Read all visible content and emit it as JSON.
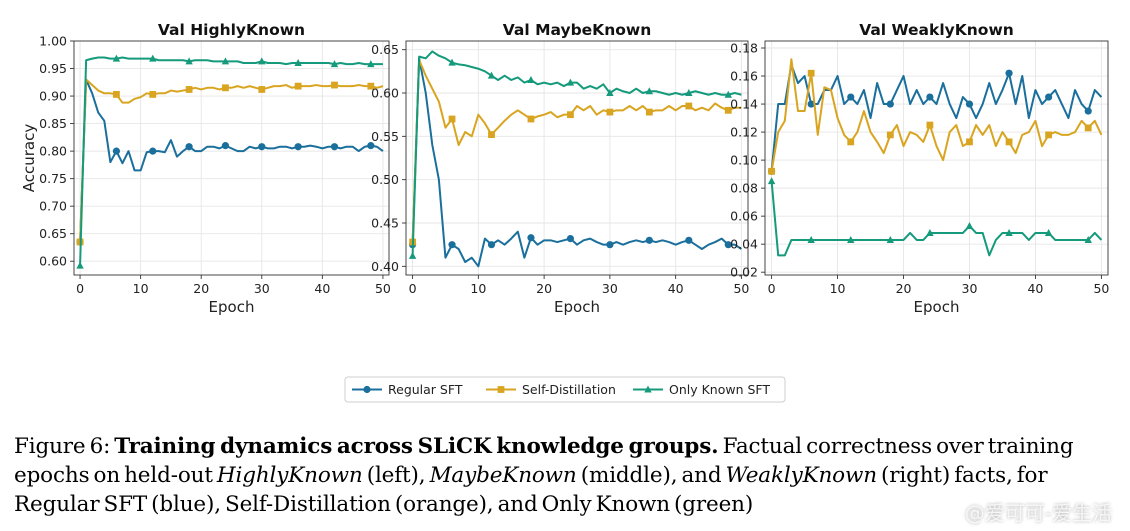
{
  "chart_data": {
    "type": "line",
    "x": [
      0,
      1,
      2,
      3,
      4,
      5,
      6,
      7,
      8,
      9,
      10,
      11,
      12,
      13,
      14,
      15,
      16,
      17,
      18,
      19,
      20,
      21,
      22,
      23,
      24,
      25,
      26,
      27,
      28,
      29,
      30,
      31,
      32,
      33,
      34,
      35,
      36,
      37,
      38,
      39,
      40,
      41,
      42,
      43,
      44,
      45,
      46,
      47,
      48,
      49,
      50
    ],
    "xticks": [
      "0",
      "10",
      "20",
      "30",
      "40",
      "50"
    ],
    "xlabel": "Epoch",
    "marker_every": 6,
    "colors": {
      "regular": "#1a6f9c",
      "selfdistill": "#d9a520",
      "onlyknown": "#159a7c"
    },
    "panels": [
      {
        "title": "Val HighlyKnown",
        "ylabel": "Accuracy",
        "ylim": [
          0.575,
          1.0
        ],
        "yticks": [
          "0.60",
          "0.65",
          "0.70",
          "0.75",
          "0.80",
          "0.85",
          "0.90",
          "0.95",
          "1.00"
        ],
        "series": [
          {
            "name": "Regular SFT",
            "values": [
              0.635,
              0.93,
              0.905,
              0.87,
              0.855,
              0.78,
              0.8,
              0.778,
              0.8,
              0.765,
              0.765,
              0.798,
              0.8,
              0.8,
              0.798,
              0.82,
              0.79,
              0.8,
              0.808,
              0.8,
              0.8,
              0.808,
              0.808,
              0.805,
              0.81,
              0.805,
              0.8,
              0.8,
              0.808,
              0.805,
              0.808,
              0.805,
              0.805,
              0.808,
              0.808,
              0.805,
              0.808,
              0.808,
              0.81,
              0.808,
              0.805,
              0.808,
              0.808,
              0.805,
              0.808,
              0.808,
              0.8,
              0.808,
              0.81,
              0.808,
              0.8
            ]
          },
          {
            "name": "Self-Distillation",
            "values": [
              0.635,
              0.93,
              0.92,
              0.91,
              0.905,
              0.905,
              0.903,
              0.888,
              0.888,
              0.895,
              0.898,
              0.905,
              0.903,
              0.905,
              0.905,
              0.91,
              0.908,
              0.91,
              0.912,
              0.915,
              0.912,
              0.915,
              0.915,
              0.912,
              0.915,
              0.915,
              0.918,
              0.915,
              0.918,
              0.915,
              0.912,
              0.915,
              0.918,
              0.918,
              0.92,
              0.915,
              0.918,
              0.918,
              0.918,
              0.92,
              0.918,
              0.918,
              0.92,
              0.918,
              0.918,
              0.918,
              0.92,
              0.918,
              0.918,
              0.915,
              0.918
            ]
          },
          {
            "name": "Only Known SFT",
            "values": [
              0.592,
              0.965,
              0.968,
              0.97,
              0.97,
              0.968,
              0.968,
              0.97,
              0.968,
              0.968,
              0.968,
              0.968,
              0.968,
              0.965,
              0.965,
              0.965,
              0.965,
              0.965,
              0.963,
              0.965,
              0.965,
              0.965,
              0.963,
              0.963,
              0.963,
              0.963,
              0.963,
              0.96,
              0.96,
              0.96,
              0.963,
              0.96,
              0.96,
              0.96,
              0.958,
              0.96,
              0.96,
              0.96,
              0.96,
              0.96,
              0.96,
              0.96,
              0.958,
              0.96,
              0.958,
              0.958,
              0.96,
              0.958,
              0.958,
              0.958,
              0.958
            ]
          }
        ]
      },
      {
        "title": "Val MaybeKnown",
        "ylabel": "",
        "ylim": [
          0.39,
          0.66
        ],
        "yticks": [
          "0.40",
          "0.45",
          "0.50",
          "0.55",
          "0.60",
          "0.65"
        ],
        "series": [
          {
            "name": "Regular SFT",
            "values": [
              0.425,
              0.64,
              0.6,
              0.54,
              0.5,
              0.41,
              0.425,
              0.42,
              0.405,
              0.41,
              0.4,
              0.432,
              0.425,
              0.43,
              0.425,
              0.432,
              0.44,
              0.41,
              0.433,
              0.425,
              0.43,
              0.43,
              0.428,
              0.43,
              0.432,
              0.425,
              0.43,
              0.432,
              0.428,
              0.425,
              0.425,
              0.428,
              0.425,
              0.428,
              0.43,
              0.428,
              0.43,
              0.428,
              0.43,
              0.428,
              0.425,
              0.428,
              0.43,
              0.425,
              0.42,
              0.425,
              0.428,
              0.432,
              0.425,
              0.425,
              0.42
            ]
          },
          {
            "name": "Self-Distillation",
            "values": [
              0.428,
              0.638,
              0.62,
              0.605,
              0.59,
              0.56,
              0.57,
              0.54,
              0.555,
              0.55,
              0.575,
              0.565,
              0.552,
              0.56,
              0.568,
              0.575,
              0.58,
              0.575,
              0.57,
              0.573,
              0.575,
              0.578,
              0.572,
              0.575,
              0.575,
              0.585,
              0.58,
              0.585,
              0.575,
              0.58,
              0.578,
              0.58,
              0.58,
              0.585,
              0.58,
              0.585,
              0.578,
              0.58,
              0.58,
              0.585,
              0.58,
              0.585,
              0.585,
              0.58,
              0.583,
              0.58,
              0.588,
              0.583,
              0.58,
              0.583,
              0.583
            ]
          },
          {
            "name": "Only Known SFT",
            "values": [
              0.412,
              0.642,
              0.64,
              0.648,
              0.643,
              0.64,
              0.635,
              0.633,
              0.632,
              0.63,
              0.628,
              0.625,
              0.62,
              0.615,
              0.62,
              0.615,
              0.618,
              0.612,
              0.615,
              0.61,
              0.612,
              0.61,
              0.612,
              0.608,
              0.612,
              0.612,
              0.605,
              0.608,
              0.605,
              0.61,
              0.6,
              0.605,
              0.602,
              0.6,
              0.605,
              0.6,
              0.602,
              0.602,
              0.6,
              0.598,
              0.6,
              0.598,
              0.6,
              0.602,
              0.6,
              0.598,
              0.6,
              0.598,
              0.598,
              0.6,
              0.598
            ]
          }
        ]
      },
      {
        "title": "Val WeaklyKnown",
        "ylabel": "",
        "ylim": [
          0.018,
          0.185
        ],
        "yticks": [
          "0.02",
          "0.04",
          "0.06",
          "0.08",
          "0.10",
          "0.12",
          "0.14",
          "0.16",
          "0.18"
        ],
        "series": [
          {
            "name": "Regular SFT",
            "values": [
              0.092,
              0.14,
              0.14,
              0.168,
              0.155,
              0.16,
              0.14,
              0.14,
              0.15,
              0.15,
              0.16,
              0.14,
              0.145,
              0.14,
              0.15,
              0.13,
              0.155,
              0.14,
              0.14,
              0.15,
              0.16,
              0.14,
              0.15,
              0.14,
              0.145,
              0.14,
              0.155,
              0.14,
              0.13,
              0.145,
              0.14,
              0.13,
              0.14,
              0.155,
              0.14,
              0.15,
              0.162,
              0.14,
              0.16,
              0.13,
              0.15,
              0.14,
              0.145,
              0.15,
              0.14,
              0.13,
              0.15,
              0.14,
              0.135,
              0.15,
              0.145
            ]
          },
          {
            "name": "Self-Distillation",
            "values": [
              0.092,
              0.12,
              0.128,
              0.172,
              0.135,
              0.135,
              0.162,
              0.118,
              0.152,
              0.15,
              0.13,
              0.118,
              0.113,
              0.12,
              0.135,
              0.12,
              0.113,
              0.105,
              0.118,
              0.125,
              0.11,
              0.12,
              0.118,
              0.113,
              0.125,
              0.11,
              0.1,
              0.12,
              0.125,
              0.11,
              0.113,
              0.125,
              0.118,
              0.125,
              0.11,
              0.12,
              0.113,
              0.105,
              0.118,
              0.12,
              0.128,
              0.11,
              0.118,
              0.12,
              0.118,
              0.118,
              0.12,
              0.128,
              0.123,
              0.128,
              0.118
            ]
          },
          {
            "name": "Only Known SFT",
            "values": [
              0.085,
              0.032,
              0.032,
              0.043,
              0.043,
              0.043,
              0.043,
              0.043,
              0.043,
              0.043,
              0.043,
              0.043,
              0.043,
              0.043,
              0.043,
              0.043,
              0.043,
              0.043,
              0.043,
              0.043,
              0.043,
              0.048,
              0.043,
              0.043,
              0.048,
              0.048,
              0.048,
              0.048,
              0.048,
              0.048,
              0.053,
              0.048,
              0.048,
              0.032,
              0.043,
              0.048,
              0.048,
              0.048,
              0.048,
              0.043,
              0.048,
              0.048,
              0.048,
              0.043,
              0.043,
              0.043,
              0.043,
              0.043,
              0.043,
              0.048,
              0.043
            ]
          }
        ]
      }
    ],
    "legend": {
      "placement": "bottom-center",
      "entries": [
        "Regular SFT",
        "Self-Distillation",
        "Only Known SFT"
      ]
    }
  },
  "caption": {
    "prefix": "Figure 6: ",
    "bold": "Training dynamics across SLiCK knowledge groups.",
    "t1": " Factual correctness over training epochs on held-out ",
    "i1": "HighlyKnown",
    "t2": " (left), ",
    "i2": "MaybeKnown",
    "t3": " (middle), and ",
    "i3": "WeaklyKnown",
    "t4": " (right) facts, for Regular SFT (blue), Self-Distillation (orange), and Only Known (green)"
  },
  "watermark": "@爱可可-爱生活"
}
